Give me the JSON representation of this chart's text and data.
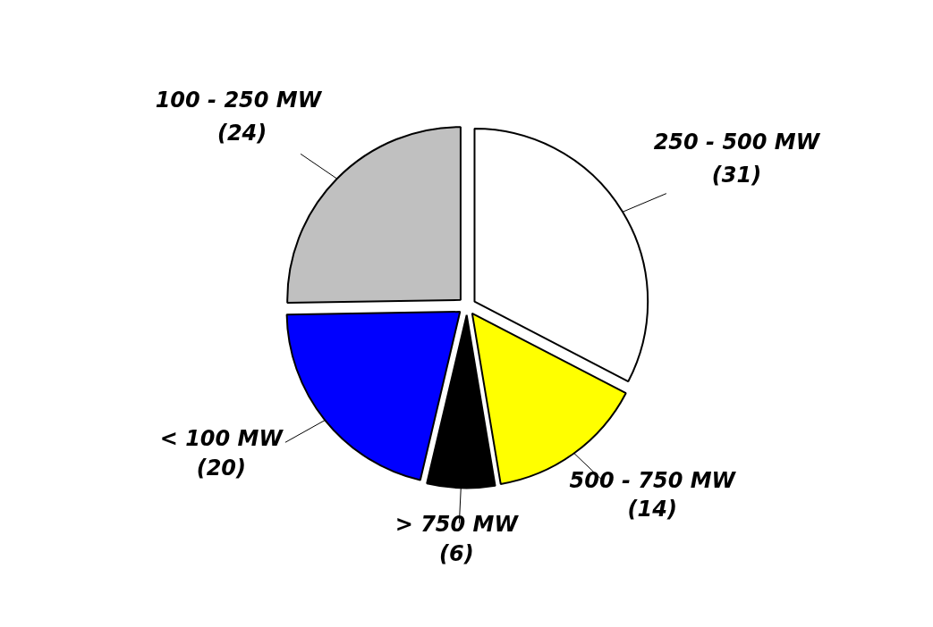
{
  "chart_data": {
    "type": "pie",
    "categories": [
      "250 - 500 MW",
      "500 - 750 MW",
      "> 750 MW",
      "< 100 MW",
      "100 - 250  MW"
    ],
    "values": [
      31,
      14,
      6,
      20,
      24
    ],
    "colors": [
      "#ffffff",
      "#ffff00",
      "#000000",
      "#0000ff",
      "#c0c0c0"
    ],
    "value_labels": [
      "(31)",
      "(14)",
      "(6)",
      "(20)",
      "(24)"
    ]
  }
}
